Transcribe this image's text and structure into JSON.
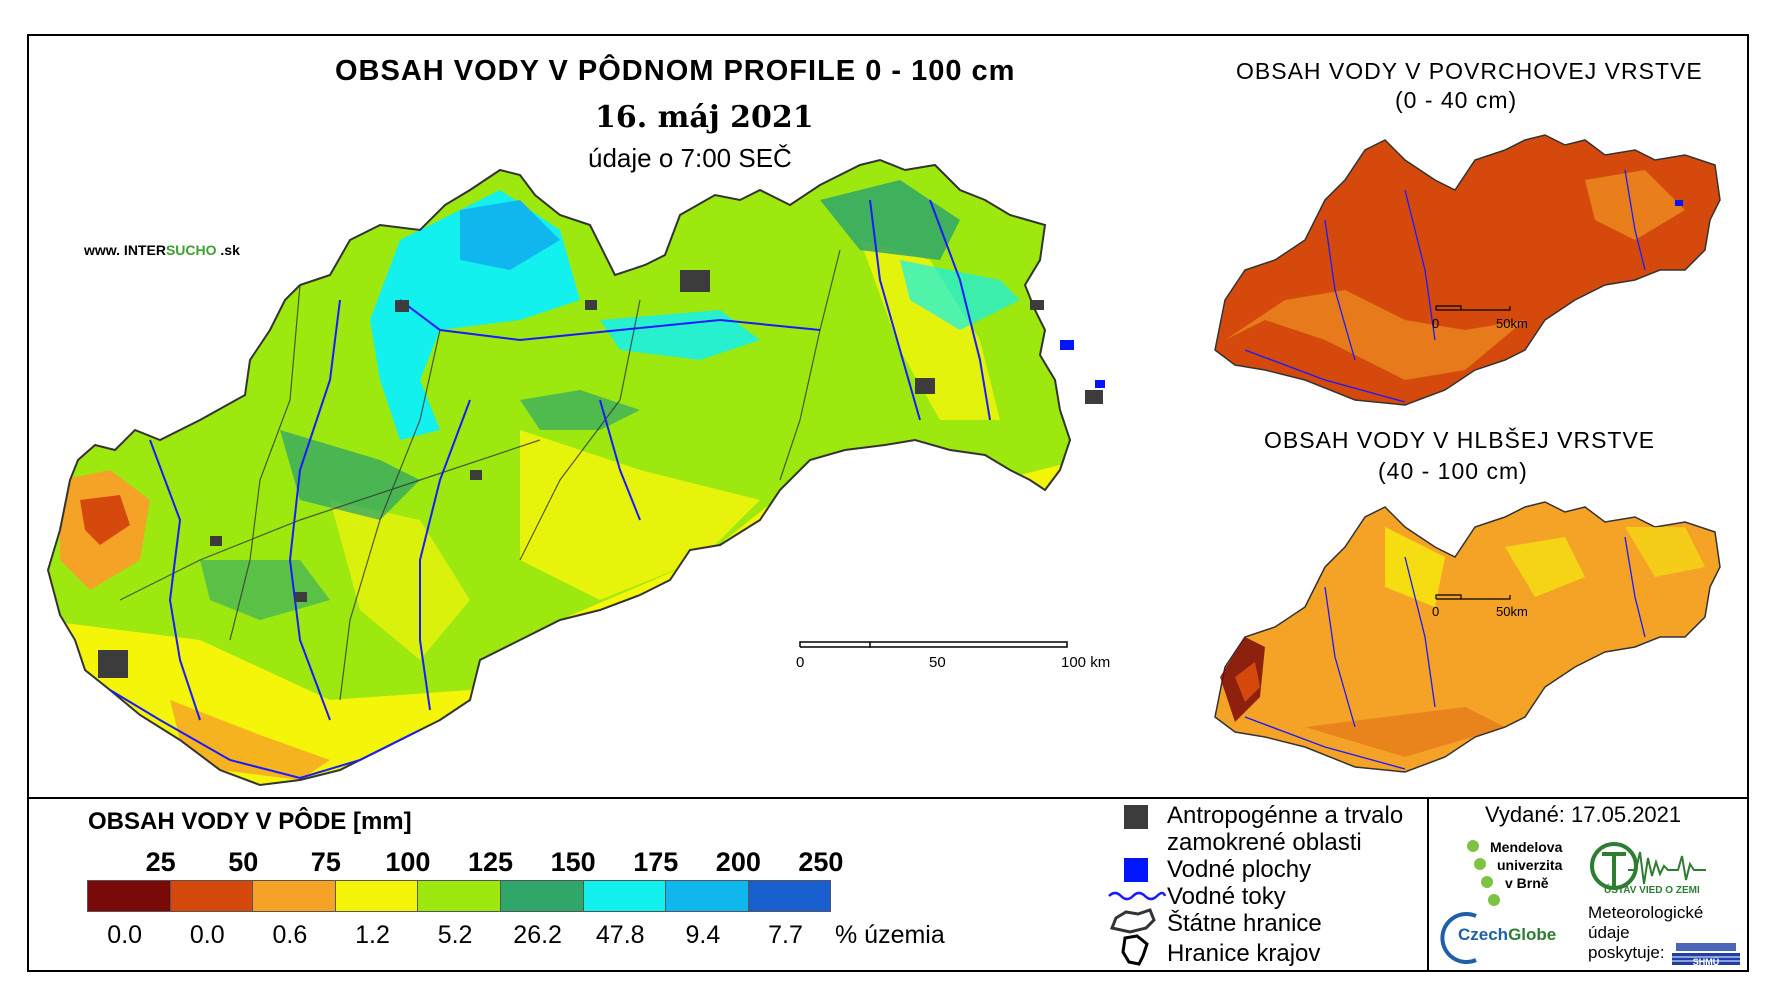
{
  "main_map": {
    "title": "OBSAH VODY V PÔDNOM PROFILE 0 - 100 cm",
    "date": "16. máj 2021",
    "time": "údaje o 7:00 SEČ",
    "website_prefix": "www. INTER",
    "website_highlight": "SUCHO",
    "website_suffix": " .sk",
    "scale": {
      "zero": "0",
      "mid": "50",
      "end": "100 km"
    }
  },
  "surface_map": {
    "title_line1": "OBSAH VODY V POVRCHOVEJ VRSTVE",
    "title_line2": "(0 - 40 cm)",
    "scale": {
      "zero": "0",
      "end": "50km"
    }
  },
  "deep_map": {
    "title_line1": "OBSAH VODY V HLBŠEJ VRSTVE",
    "title_line2": "(40 - 100 cm)",
    "scale": {
      "zero": "0",
      "end": "50km"
    }
  },
  "legend": {
    "title": "OBSAH VODY V PÔDE [mm]",
    "class_breaks": [
      "25",
      "50",
      "75",
      "100",
      "125",
      "150",
      "175",
      "200",
      "250"
    ],
    "percentages": [
      "0.0",
      "0.0",
      "0.6",
      "1.2",
      "5.2",
      "26.2",
      "47.8",
      "9.4",
      "7.7"
    ],
    "percent_unit": "% územia",
    "colors": [
      "#7a0a0a",
      "#d54a0c",
      "#f5a326",
      "#f5f50a",
      "#9ce80f",
      "#2fa66a",
      "#12f1ee",
      "#10b7ef",
      "#1a5fd0"
    ]
  },
  "map_key": {
    "anthropogenic": "Antropogénne a trvalo zamokrené oblasti",
    "anthropogenic_l1": "Antropogénne a trvalo",
    "anthropogenic_l2": "zamokrené oblasti",
    "water_bodies": "Vodné plochy",
    "water_streams": "Vodné toky",
    "state_border": "Štátne hranice",
    "region_border": "Hranice krajov",
    "anthropogenic_color": "#3c3c3c",
    "water_body_color": "#0016ff",
    "stream_color": "#1a1aff"
  },
  "issued": "Vydané: 17.05.2021",
  "logos": {
    "mendel_l1": "Mendelova",
    "mendel_l2": "univerzita",
    "mendel_l3": "v Brně",
    "ustav": "ÚSTAV VIED O ZEMI",
    "czechglobe_a": "Czech",
    "czechglobe_b": "Globe",
    "meteo_l1": "Meteorologické",
    "meteo_l2": "údaje",
    "meteo_l3": "poskytuje:",
    "shmu": "SHMÚ"
  }
}
